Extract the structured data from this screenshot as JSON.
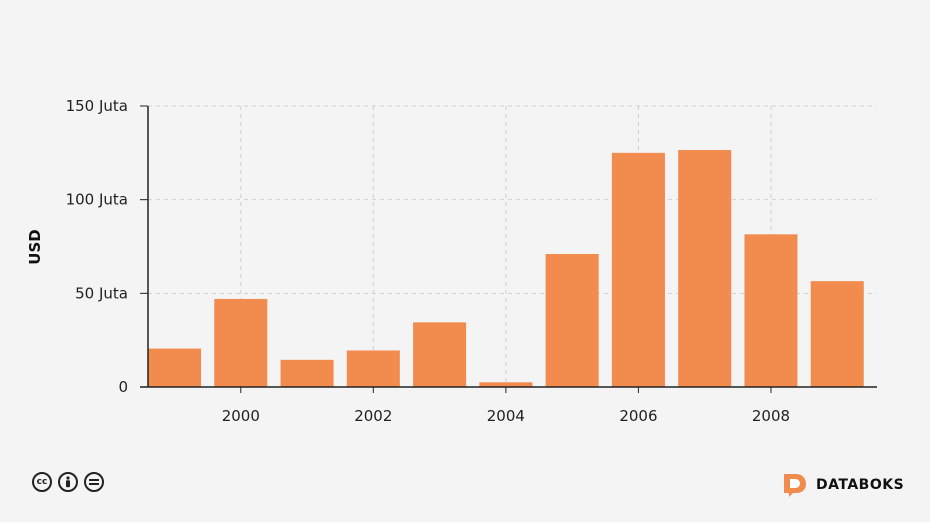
{
  "chart_data": {
    "type": "bar",
    "x": [
      1999,
      2000,
      2001,
      2002,
      2003,
      2004,
      2005,
      2006,
      2007,
      2008,
      2009
    ],
    "values": [
      20.5,
      47,
      14.5,
      19.5,
      34.5,
      2.5,
      71,
      125,
      126.5,
      81.5,
      56.5
    ],
    "ylabel": "USD",
    "xlabel": "",
    "ylim": [
      0,
      150
    ],
    "y_ticks": [
      {
        "value": 0,
        "label": "0"
      },
      {
        "value": 50,
        "label": "50 Juta"
      },
      {
        "value": 100,
        "label": "100 Juta"
      },
      {
        "value": 150,
        "label": "150 Juta"
      }
    ],
    "x_ticks": [
      {
        "value": 2000,
        "label": "2000"
      },
      {
        "value": 2002,
        "label": "2002"
      },
      {
        "value": 2004,
        "label": "2004"
      },
      {
        "value": 2006,
        "label": "2006"
      },
      {
        "value": 2008,
        "label": "2008"
      }
    ],
    "bar_color": "#f28b4e",
    "grid": true
  },
  "footer": {
    "license_icons": [
      "cc-icon",
      "attribution-icon",
      "no-derivatives-icon"
    ],
    "brand_name": "DATABOKS",
    "brand_color": "#f28b4e"
  }
}
